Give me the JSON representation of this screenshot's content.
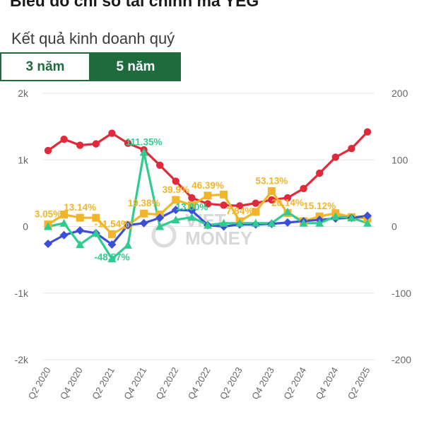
{
  "header": {
    "title": "Biểu đồ chỉ số tài chính mã YEG",
    "subtitle": "Kết quả kinh doanh quý"
  },
  "tabs": [
    {
      "label": "3 năm",
      "active": false
    },
    {
      "label": "5 năm",
      "active": true
    }
  ],
  "watermark": {
    "top": "VIET",
    "bottom": "MONEY"
  },
  "chart_data": {
    "type": "line",
    "grid": true,
    "y_left": {
      "ticks": [
        "2k",
        "1k",
        "0",
        "-1k",
        "-2k"
      ],
      "range": [
        -2000,
        2000
      ]
    },
    "y_right": {
      "ticks": [
        "200",
        "100",
        "0",
        "-100",
        "-200"
      ],
      "range": [
        -200,
        200
      ]
    },
    "x_tick_labels": [
      "Q2 2020",
      "Q4 2020",
      "Q2 2021",
      "Q4 2021",
      "Q2 2022",
      "Q4 2022",
      "Q2 2023",
      "Q4 2023",
      "Q2 2024",
      "Q4 2024",
      "Q2 2025"
    ],
    "x": [
      "Q2 2020",
      "Q3 2020",
      "Q4 2020",
      "Q1 2021",
      "Q2 2021",
      "Q3 2021",
      "Q4 2021",
      "Q1 2022",
      "Q2 2022",
      "Q3 2022",
      "Q4 2022",
      "Q1 2023",
      "Q2 2023",
      "Q3 2023",
      "Q4 2023",
      "Q1 2024",
      "Q2 2024",
      "Q3 2024",
      "Q4 2024",
      "Q1 2025",
      "Q2 2025"
    ],
    "series": [
      {
        "color": "#e0293b",
        "marker": "circle",
        "axis": "left",
        "values": [
          1140,
          1310,
          1220,
          1240,
          1400,
          1250,
          1150,
          920,
          680,
          430,
          340,
          320,
          310,
          350,
          400,
          430,
          570,
          800,
          1040,
          1170,
          1420
        ]
      },
      {
        "color": "#f2b529",
        "marker": "square",
        "axis": "right",
        "values": [
          3.05,
          18,
          13.14,
          13,
          -11.54,
          2,
          19.38,
          18,
          39.9,
          32,
          46.39,
          48,
          7.84,
          22,
          53.13,
          20.14,
          8,
          15.12,
          20,
          14,
          12
        ]
      },
      {
        "color": "#3d4fd9",
        "marker": "diamond",
        "axis": "left",
        "values": [
          -260,
          -130,
          -60,
          -100,
          -270,
          20,
          50,
          130,
          250,
          240,
          20,
          0,
          30,
          30,
          40,
          60,
          80,
          100,
          120,
          130,
          160
        ]
      },
      {
        "color": "#2ecc8f",
        "marker": "triangle",
        "axis": "right",
        "values": [
          0,
          5,
          -27,
          -10,
          -48.57,
          -28,
          111.35,
          0,
          10,
          13.8,
          2,
          5,
          5,
          5,
          5,
          22,
          5,
          5,
          15,
          13,
          5
        ]
      }
    ],
    "labels": [
      {
        "series": 1,
        "index": 0,
        "text": "3.05%"
      },
      {
        "series": 1,
        "index": 2,
        "text": "13.14%"
      },
      {
        "series": 1,
        "index": 4,
        "text": "-11.54%"
      },
      {
        "series": 1,
        "index": 6,
        "text": "19.38%"
      },
      {
        "series": 1,
        "index": 8,
        "text": "39.9%"
      },
      {
        "series": 1,
        "index": 10,
        "text": "46.39%"
      },
      {
        "series": 1,
        "index": 12,
        "text": "7.84%"
      },
      {
        "series": 1,
        "index": 14,
        "text": "53.13%"
      },
      {
        "series": 1,
        "index": 15,
        "text": "20.14%"
      },
      {
        "series": 1,
        "index": 17,
        "text": "15.12%"
      },
      {
        "series": 3,
        "index": 4,
        "text": "-48.57%"
      },
      {
        "series": 3,
        "index": 6,
        "text": "111.35%"
      },
      {
        "series": 3,
        "index": 9,
        "text": "13.80%"
      }
    ]
  }
}
